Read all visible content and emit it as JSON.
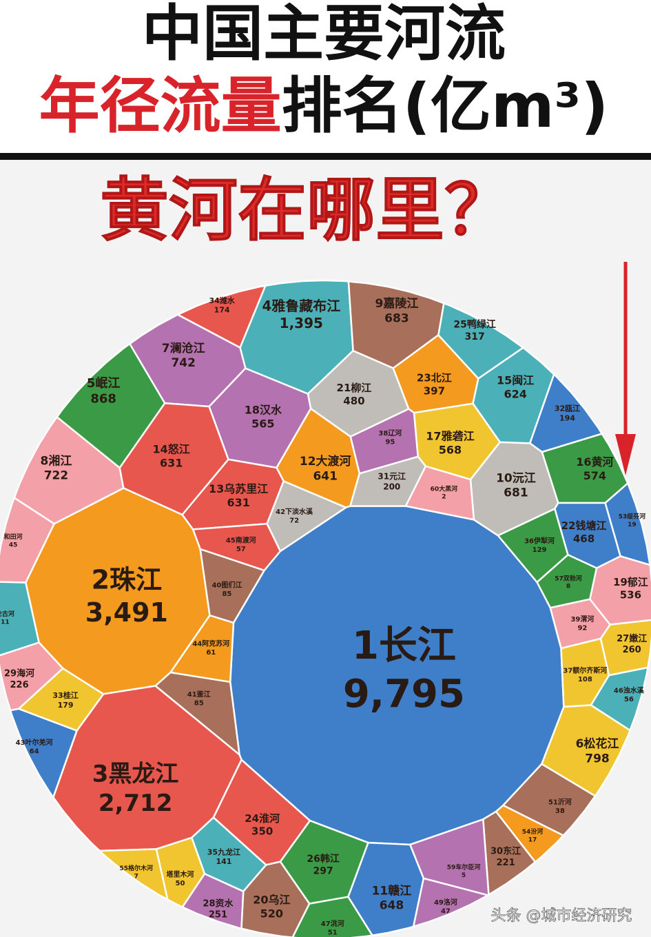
{
  "header": {
    "title": "中国主要河流",
    "title2": [
      "年径流量",
      "排名(亿m³)"
    ],
    "subtitle": "黄河在哪里？"
  },
  "watermark": "头条 @城市经济研究",
  "chart_data": {
    "type": "treemap",
    "categories": [
      "1长江",
      "2珠江",
      "3黑龙江",
      "4雅鲁藏布江",
      "5岷江",
      "6松花江",
      "7澜沧江",
      "8湘江",
      "9嘉陵江",
      "10沅江",
      "11赣江",
      "12大渡河",
      "13乌苏里江",
      "14怒江",
      "15闽江",
      "16黄河",
      "17雅砻江",
      "18汉水",
      "19郁江",
      "20乌江",
      "21柳江",
      "22钱塘江",
      "23北江",
      "24淮河",
      "25鸭绿江",
      "26韩江",
      "27嫩江",
      "28资水",
      "29海河",
      "30东江",
      "31元江",
      "32瓯江",
      "33桂江",
      "34潍水",
      "35九龙江",
      "36伊犁河",
      "37额尔齐斯河",
      "38辽河",
      "39渭河",
      "40图们江",
      "41鉴江",
      "42下淡水溪",
      "43叶尔羌河",
      "44阿克苏河",
      "45南渡河",
      "46浊水溪",
      "47洮河",
      "49洛河",
      "塔里木河",
      "51沂河",
      "53绥芬河",
      "54汾河",
      "55格尔木河",
      "57双勃河",
      "59车尔臣河",
      "60大黑河",
      "和田河",
      "伦古河"
    ],
    "values": [
      9795,
      3491,
      2712,
      1395,
      868,
      798,
      742,
      722,
      683,
      681,
      648,
      641,
      631,
      631,
      624,
      574,
      568,
      565,
      536,
      520,
      480,
      468,
      397,
      350,
      317,
      297,
      260,
      251,
      226,
      221,
      200,
      194,
      179,
      174,
      141,
      129,
      108,
      95,
      92,
      85,
      85,
      72,
      64,
      61,
      57,
      56,
      51,
      47,
      50,
      38,
      19,
      17,
      7,
      8,
      5,
      2,
      45,
      11
    ],
    "value_labels": [
      "9,795",
      "3,491",
      "2,712",
      "1,395",
      "868",
      "798",
      "742",
      "722",
      "683",
      "681",
      "648",
      "641",
      "631",
      "631",
      "624",
      "574",
      "568",
      "565",
      "536",
      "520",
      "480",
      "468",
      "397",
      "350",
      "317",
      "297",
      "260",
      "251",
      "226",
      "221",
      "200",
      "194",
      "179",
      "174",
      "141",
      "129",
      "108",
      "95",
      "92",
      "85",
      "85",
      "72",
      "64",
      "61",
      "57",
      "56",
      "51",
      "47",
      "50",
      "38",
      "19",
      "17",
      "7",
      "8",
      "5",
      "2",
      "45",
      "11"
    ],
    "colors": [
      "#3f7ec8",
      "#f39a1f",
      "#e8574e",
      "#4bb0b8",
      "#3a9a45",
      "#f0c530",
      "#b472b0",
      "#f4a0a8",
      "#a8705a",
      "#c0bcb8",
      "#3f7ec8",
      "#f39a1f",
      "#e8574e",
      "#e8574e",
      "#4bb0b8",
      "#3a9a45",
      "#f0c530",
      "#b472b0",
      "#f4a0a8",
      "#a8705a",
      "#c0bcb8",
      "#3f7ec8",
      "#f39a1f",
      "#e8574e",
      "#4bb0b8",
      "#3a9a45",
      "#f0c530",
      "#b472b0",
      "#f4a0a8",
      "#a8705a",
      "#c0bcb8",
      "#3f7ec8",
      "#f0c530",
      "#e8574e",
      "#4bb0b8",
      "#3a9a45",
      "#f0c530",
      "#b472b0",
      "#f4a0a8",
      "#a8705a",
      "#a8705a",
      "#c0bcb8",
      "#3f7ec8",
      "#f39a1f",
      "#e8574e",
      "#4bb0b8",
      "#3a9a45",
      "#b472b0",
      "#f0c530",
      "#a8705a",
      "#3f7ec8",
      "#f39a1f",
      "#f0c530",
      "#3a9a45",
      "#b472b0",
      "#f4a0a8",
      "#f4a0a8",
      "#4bb0b8"
    ]
  }
}
